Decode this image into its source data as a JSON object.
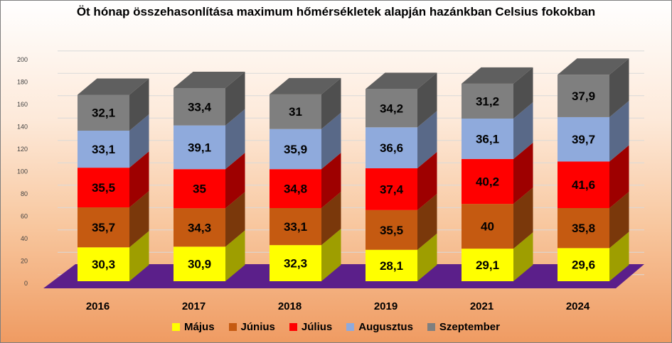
{
  "chart_data": {
    "type": "bar",
    "stacked": true,
    "three_d": true,
    "title": "Öt hónap összehasonlítása maximum hőmérsékletek alapján hazánkban Celsius fokokban",
    "categories": [
      "2016",
      "2017",
      "2018",
      "2019",
      "2021",
      "2024"
    ],
    "ylim": [
      0,
      200
    ],
    "yticks": [
      "0",
      "20",
      "40",
      "60",
      "80",
      "100",
      "120",
      "140",
      "160",
      "180",
      "200"
    ],
    "grid": true,
    "legend": "bottom",
    "floor_color": "#5b1f8a",
    "series": [
      {
        "name": "Május",
        "color": "#ffff00",
        "values": [
          30.3,
          30.9,
          32.3,
          28.1,
          29.1,
          29.6
        ],
        "labels": [
          "30,3",
          "30,9",
          "32,3",
          "28,1",
          "29,1",
          "29,6"
        ]
      },
      {
        "name": "Június",
        "color": "#c55a11",
        "values": [
          35.7,
          34.3,
          33.1,
          35.5,
          40,
          35.8
        ],
        "labels": [
          "35,7",
          "34,3",
          "33,1",
          "35,5",
          "40",
          "35,8"
        ]
      },
      {
        "name": "Július",
        "color": "#ff0000",
        "values": [
          35.5,
          35,
          34.8,
          37.4,
          40.2,
          41.6
        ],
        "labels": [
          "35,5",
          "35",
          "34,8",
          "37,4",
          "40,2",
          "41,6"
        ]
      },
      {
        "name": "Augusztus",
        "color": "#8faadc",
        "values": [
          33.1,
          39.1,
          35.9,
          36.6,
          36.1,
          39.7
        ],
        "labels": [
          "33,1",
          "39,1",
          "35,9",
          "36,6",
          "36,1",
          "39,7"
        ]
      },
      {
        "name": "Szeptember",
        "color": "#7f7f7f",
        "values": [
          32.1,
          33.4,
          31,
          34.2,
          31.2,
          37.9
        ],
        "labels": [
          "32,1",
          "33,4",
          "31",
          "34,2",
          "31,2",
          "37,9"
        ]
      }
    ]
  }
}
